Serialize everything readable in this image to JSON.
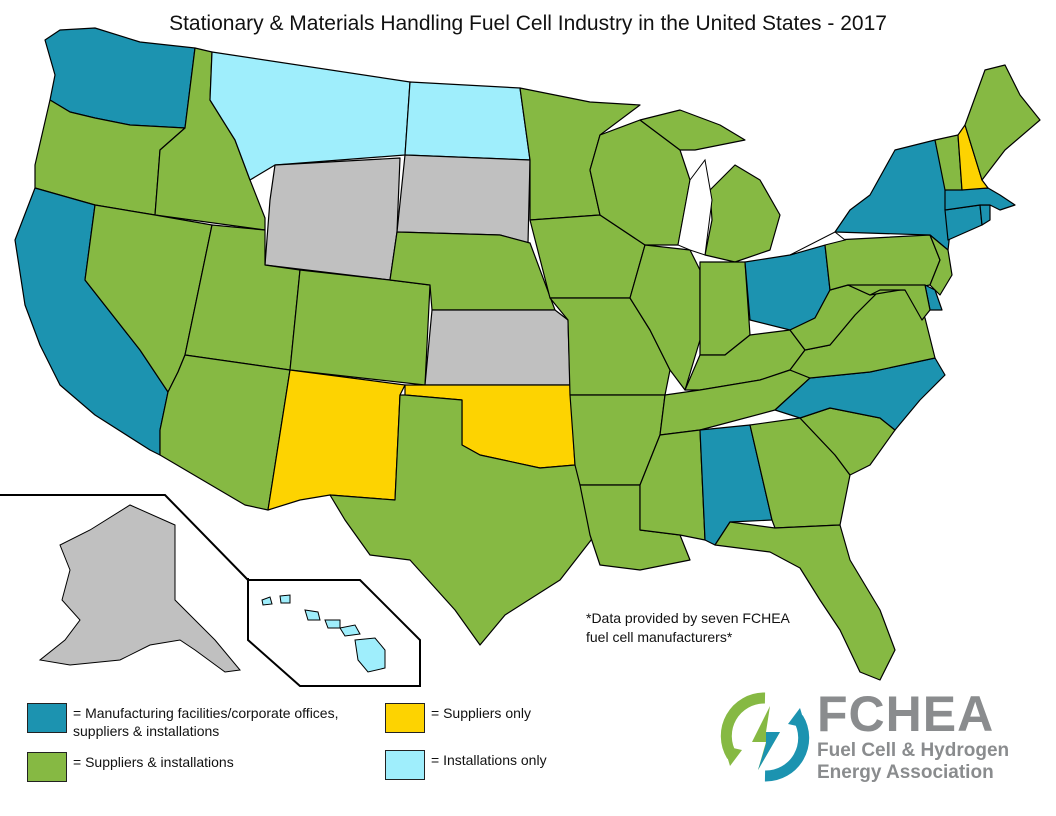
{
  "title": "Stationary & Materials Handling Fuel Cell Industry in the United States - 2017",
  "note_lines": [
    "*Data provided by seven FCHEA",
    "fuel cell manufacturers*"
  ],
  "colors": {
    "manufacturing": "#1c93b0",
    "suppliers_installations": "#86b943",
    "suppliers_only": "#fdd301",
    "installations_only": "#9feefc",
    "no_data": "#c0c0c0",
    "border": "#000000"
  },
  "legend": [
    {
      "key": "manufacturing",
      "label": "= Manufacturing facilities/corporate offices,",
      "label2": "suppliers & installations"
    },
    {
      "key": "suppliers_installations",
      "label": "= Suppliers & installations"
    },
    {
      "key": "suppliers_only",
      "label": "= Suppliers only"
    },
    {
      "key": "installations_only",
      "label": "= Installations only"
    }
  ],
  "logo": {
    "name": "FCHEA",
    "line1": "Fuel Cell & Hydrogen",
    "line2": "Energy Association"
  },
  "states": {
    "WA": "manufacturing",
    "OR": "suppliers_installations",
    "CA": "manufacturing",
    "ID": "suppliers_installations",
    "NV": "suppliers_installations",
    "MT": "installations_only",
    "WY": "no_data",
    "UT": "suppliers_installations",
    "AZ": "suppliers_installations",
    "CO": "suppliers_installations",
    "NM": "suppliers_only",
    "ND": "installations_only",
    "SD": "no_data",
    "NE": "suppliers_installations",
    "KS": "no_data",
    "OK": "suppliers_only",
    "TX": "suppliers_installations",
    "MN": "suppliers_installations",
    "IA": "suppliers_installations",
    "MO": "suppliers_installations",
    "AR": "suppliers_installations",
    "LA": "suppliers_installations",
    "WI": "suppliers_installations",
    "IL": "suppliers_installations",
    "MI": "suppliers_installations",
    "IN": "suppliers_installations",
    "OH": "manufacturing",
    "KY": "suppliers_installations",
    "TN": "suppliers_installations",
    "MS": "suppliers_installations",
    "AL": "manufacturing",
    "GA": "suppliers_installations",
    "FL": "suppliers_installations",
    "SC": "suppliers_installations",
    "NC": "manufacturing",
    "VA": "suppliers_installations",
    "WV": "suppliers_installations",
    "PA": "suppliers_installations",
    "NY": "manufacturing",
    "NJ": "suppliers_installations",
    "DE": "manufacturing",
    "MD": "suppliers_installations",
    "CT": "manufacturing",
    "RI": "manufacturing",
    "MA": "manufacturing",
    "VT": "suppliers_installations",
    "NH": "suppliers_only",
    "ME": "suppliers_installations",
    "AK": "no_data",
    "HI": "installations_only"
  }
}
